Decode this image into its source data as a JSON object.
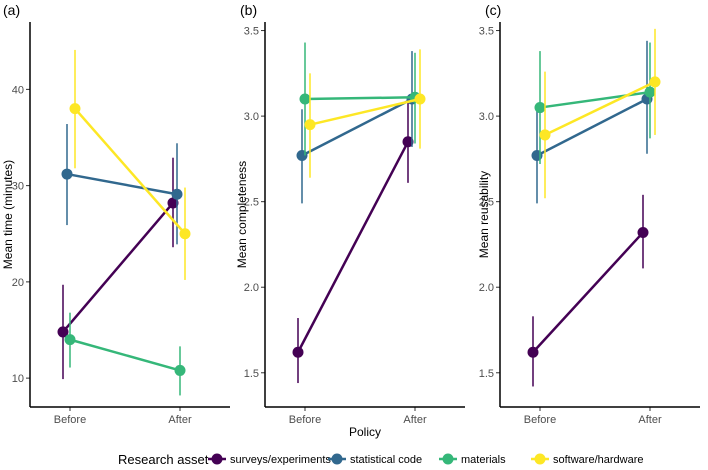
{
  "figure": {
    "legend_title": "Research asset",
    "shared_xlabel": "Policy"
  },
  "series_styles": [
    {
      "name": "surveys/experiments",
      "color": "#440154"
    },
    {
      "name": "statistical code",
      "color": "#31688e"
    },
    {
      "name": "materials",
      "color": "#35b779"
    },
    {
      "name": "software/hardware",
      "color": "#fde725"
    }
  ],
  "chart_data": [
    {
      "type": "line",
      "panel": "(a)",
      "title": "",
      "xlabel": "",
      "ylabel": "Mean time (minutes)",
      "categories": [
        "Before",
        "After"
      ],
      "ylim": [
        7,
        47
      ],
      "yticks": [
        10,
        20,
        30,
        40
      ],
      "series": [
        {
          "name": "surveys/experiments",
          "values": [
            14.8,
            28.2
          ],
          "lower": [
            9.9,
            23.6
          ],
          "upper": [
            19.7,
            32.9
          ]
        },
        {
          "name": "statistical code",
          "values": [
            31.2,
            29.1
          ],
          "lower": [
            25.9,
            23.9
          ],
          "upper": [
            36.4,
            34.4
          ]
        },
        {
          "name": "materials",
          "values": [
            14.0,
            10.8
          ],
          "lower": [
            11.1,
            8.2
          ],
          "upper": [
            16.8,
            13.3
          ]
        },
        {
          "name": "software/hardware",
          "values": [
            38.0,
            25.0
          ],
          "lower": [
            31.8,
            20.2
          ],
          "upper": [
            44.1,
            29.8
          ]
        }
      ]
    },
    {
      "type": "line",
      "panel": "(b)",
      "title": "",
      "xlabel": "Policy",
      "ylabel": "Mean completeness",
      "categories": [
        "Before",
        "After"
      ],
      "ylim": [
        1.3,
        3.55
      ],
      "yticks": [
        1.5,
        2.0,
        2.5,
        3.0,
        3.5
      ],
      "series": [
        {
          "name": "surveys/experiments",
          "values": [
            1.62,
            2.85
          ],
          "lower": [
            1.44,
            2.61
          ],
          "upper": [
            1.82,
            3.08
          ]
        },
        {
          "name": "statistical code",
          "values": [
            2.77,
            3.1
          ],
          "lower": [
            2.49,
            2.82
          ],
          "upper": [
            3.04,
            3.38
          ]
        },
        {
          "name": "materials",
          "values": [
            3.1,
            3.11
          ],
          "lower": [
            2.77,
            2.84
          ],
          "upper": [
            3.43,
            3.37
          ]
        },
        {
          "name": "software/hardware",
          "values": [
            2.95,
            3.1
          ],
          "lower": [
            2.64,
            2.81
          ],
          "upper": [
            3.25,
            3.39
          ]
        }
      ]
    },
    {
      "type": "line",
      "panel": "(c)",
      "title": "",
      "xlabel": "",
      "ylabel": "Mean reusability",
      "categories": [
        "Before",
        "After"
      ],
      "ylim": [
        1.3,
        3.55
      ],
      "yticks": [
        1.5,
        2.0,
        2.5,
        3.0,
        3.5
      ],
      "series": [
        {
          "name": "surveys/experiments",
          "values": [
            1.62,
            2.32
          ],
          "lower": [
            1.42,
            2.11
          ],
          "upper": [
            1.83,
            2.54
          ]
        },
        {
          "name": "statistical code",
          "values": [
            2.77,
            3.1
          ],
          "lower": [
            2.49,
            2.78
          ],
          "upper": [
            3.05,
            3.44
          ]
        },
        {
          "name": "materials",
          "values": [
            3.05,
            3.14
          ],
          "lower": [
            2.72,
            2.87
          ],
          "upper": [
            3.38,
            3.43
          ]
        },
        {
          "name": "software/hardware",
          "values": [
            2.89,
            3.2
          ],
          "lower": [
            2.52,
            2.89
          ],
          "upper": [
            3.26,
            3.51
          ]
        }
      ]
    }
  ]
}
